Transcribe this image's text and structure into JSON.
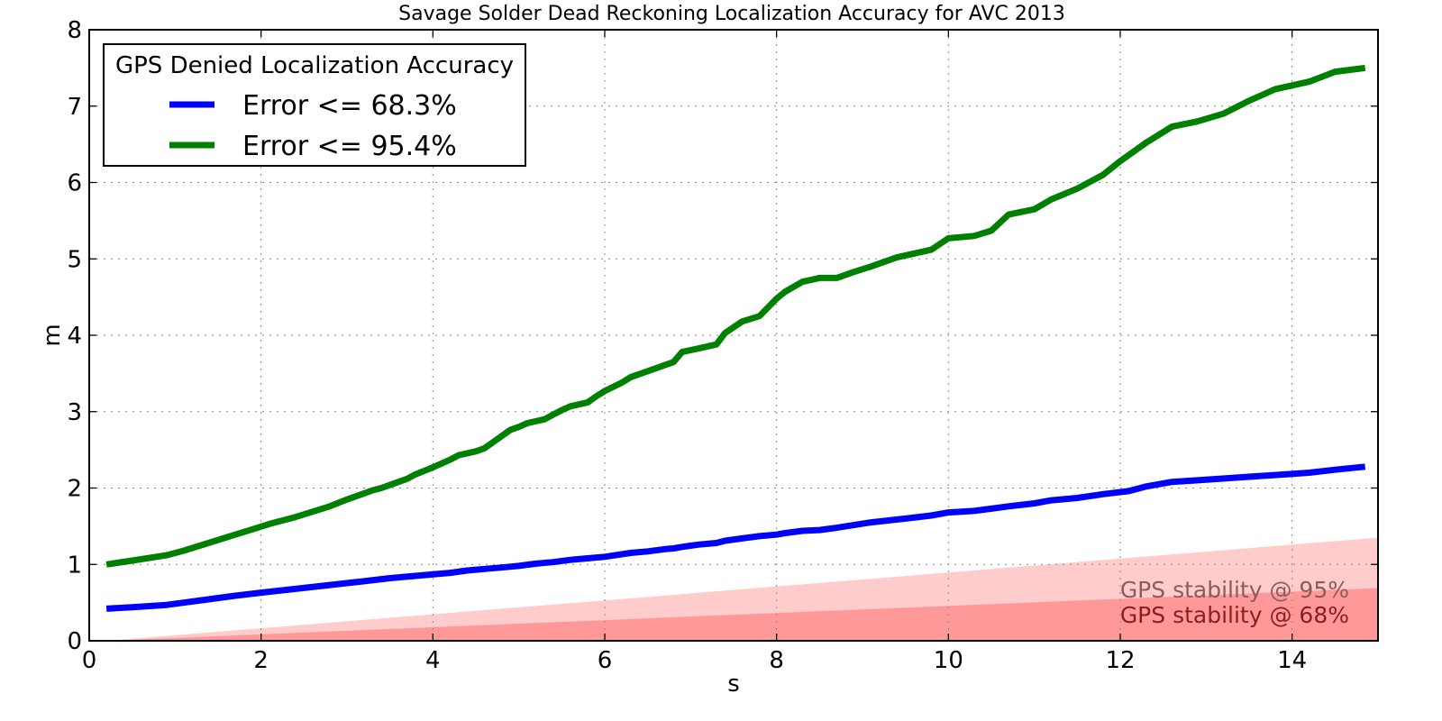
{
  "chart_data": {
    "type": "line",
    "title": "Savage Solder Dead Reckoning Localization Accuracy for AVC 2013",
    "xlabel": "s",
    "ylabel": "m",
    "xlim": [
      0,
      15
    ],
    "ylim": [
      0,
      8
    ],
    "xticks": [
      0,
      2,
      4,
      6,
      8,
      10,
      12,
      14
    ],
    "yticks": [
      0,
      1,
      2,
      3,
      4,
      5,
      6,
      7,
      8
    ],
    "grid": true,
    "legend": {
      "title": "GPS Denied Localization Accuracy",
      "position": "top-left"
    },
    "series": [
      {
        "name": "Error <= 68.3%",
        "color": "#0000ff",
        "x": [
          0.2,
          0.5,
          0.9,
          1.3,
          1.7,
          2.0,
          2.4,
          2.8,
          3.2,
          3.5,
          3.9,
          4.2,
          4.4,
          4.6,
          4.9,
          5.0,
          5.2,
          5.4,
          5.6,
          5.8,
          6.0,
          6.3,
          6.5,
          6.7,
          6.8,
          6.9,
          7.1,
          7.3,
          7.4,
          7.6,
          7.8,
          8.0,
          8.1,
          8.3,
          8.5,
          8.7,
          9.1,
          9.5,
          9.8,
          10.0,
          10.3,
          10.5,
          10.7,
          11.0,
          11.2,
          11.5,
          11.8,
          12.1,
          12.3,
          12.6,
          13.0,
          13.4,
          13.8,
          14.2,
          14.5,
          14.85
        ],
        "values": [
          0.42,
          0.44,
          0.47,
          0.53,
          0.59,
          0.63,
          0.68,
          0.73,
          0.78,
          0.82,
          0.86,
          0.89,
          0.92,
          0.94,
          0.97,
          0.98,
          1.01,
          1.03,
          1.06,
          1.08,
          1.1,
          1.15,
          1.17,
          1.2,
          1.21,
          1.23,
          1.26,
          1.28,
          1.31,
          1.34,
          1.37,
          1.39,
          1.41,
          1.44,
          1.45,
          1.48,
          1.55,
          1.6,
          1.64,
          1.68,
          1.7,
          1.73,
          1.76,
          1.8,
          1.84,
          1.87,
          1.92,
          1.96,
          2.02,
          2.08,
          2.11,
          2.14,
          2.17,
          2.2,
          2.24,
          2.28
        ]
      },
      {
        "name": "Error <= 95.4%",
        "color": "#008000",
        "x": [
          0.2,
          0.5,
          0.9,
          1.1,
          1.5,
          1.9,
          2.1,
          2.4,
          2.8,
          3.0,
          3.2,
          3.3,
          3.4,
          3.5,
          3.7,
          3.8,
          4.0,
          4.2,
          4.3,
          4.5,
          4.6,
          4.7,
          4.8,
          4.9,
          5.0,
          5.1,
          5.3,
          5.4,
          5.5,
          5.6,
          5.8,
          5.9,
          6.0,
          6.2,
          6.3,
          6.5,
          6.6,
          6.8,
          6.9,
          7.1,
          7.3,
          7.4,
          7.6,
          7.8,
          8.0,
          8.1,
          8.3,
          8.5,
          8.7,
          8.9,
          9.1,
          9.4,
          9.8,
          10.0,
          10.3,
          10.5,
          10.7,
          11.0,
          11.2,
          11.5,
          11.8,
          12.0,
          12.3,
          12.6,
          12.9,
          13.2,
          13.5,
          13.8,
          14.2,
          14.5,
          14.85
        ],
        "values": [
          1.0,
          1.05,
          1.12,
          1.18,
          1.32,
          1.46,
          1.53,
          1.62,
          1.76,
          1.85,
          1.93,
          1.97,
          2.0,
          2.04,
          2.12,
          2.18,
          2.27,
          2.37,
          2.43,
          2.48,
          2.52,
          2.6,
          2.68,
          2.76,
          2.8,
          2.85,
          2.9,
          2.96,
          3.02,
          3.07,
          3.12,
          3.2,
          3.27,
          3.38,
          3.45,
          3.53,
          3.57,
          3.65,
          3.78,
          3.83,
          3.88,
          4.03,
          4.18,
          4.25,
          4.48,
          4.57,
          4.7,
          4.75,
          4.75,
          4.83,
          4.9,
          5.02,
          5.12,
          5.27,
          5.3,
          5.37,
          5.58,
          5.65,
          5.78,
          5.92,
          6.1,
          6.28,
          6.52,
          6.73,
          6.8,
          6.9,
          7.07,
          7.22,
          7.32,
          7.45,
          7.5
        ]
      }
    ],
    "bands": [
      {
        "name": "GPS stability @ 95%",
        "color": "#ffcccc",
        "text_color": "#8c5c5c",
        "x_start": 0.2,
        "x_end": 15.0,
        "lower": [
          0.0,
          0.0
        ],
        "upper": [
          0.0,
          1.35
        ]
      },
      {
        "name": "GPS stability @ 68%",
        "color": "#ff9999",
        "text_color": "#8b1f1f",
        "x_start": 0.2,
        "x_end": 15.0,
        "lower": [
          0.0,
          0.0
        ],
        "upper": [
          0.0,
          0.69
        ]
      }
    ]
  }
}
